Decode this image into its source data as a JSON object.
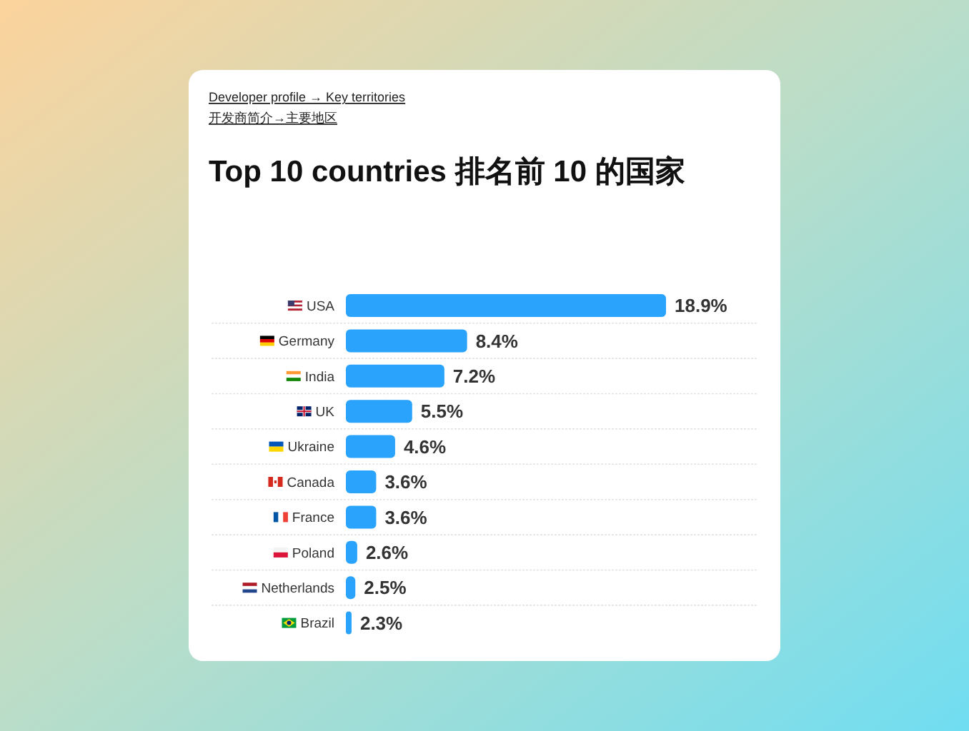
{
  "chart_data": {
    "type": "bar",
    "orientation": "horizontal",
    "title": "Top 10 countries 排名前 10 的国家",
    "annotations": [
      "Developer profile → Key territories",
      "开发商简介→主要地区"
    ],
    "categories": [
      "USA",
      "Germany",
      "India",
      "UK",
      "Ukraine",
      "Canada",
      "France",
      "Poland",
      "Netherlands",
      "Brazil"
    ],
    "values": [
      18.9,
      8.4,
      7.2,
      5.5,
      4.6,
      3.6,
      3.6,
      2.6,
      2.5,
      2.3
    ],
    "value_labels": [
      "18.9%",
      "8.4%",
      "7.2%",
      "5.5%",
      "4.6%",
      "3.6%",
      "3.6%",
      "2.6%",
      "2.5%",
      "2.3%"
    ],
    "color": "#29a3fb",
    "xlim": [
      2,
      18.9
    ],
    "grid": "y"
  }
}
